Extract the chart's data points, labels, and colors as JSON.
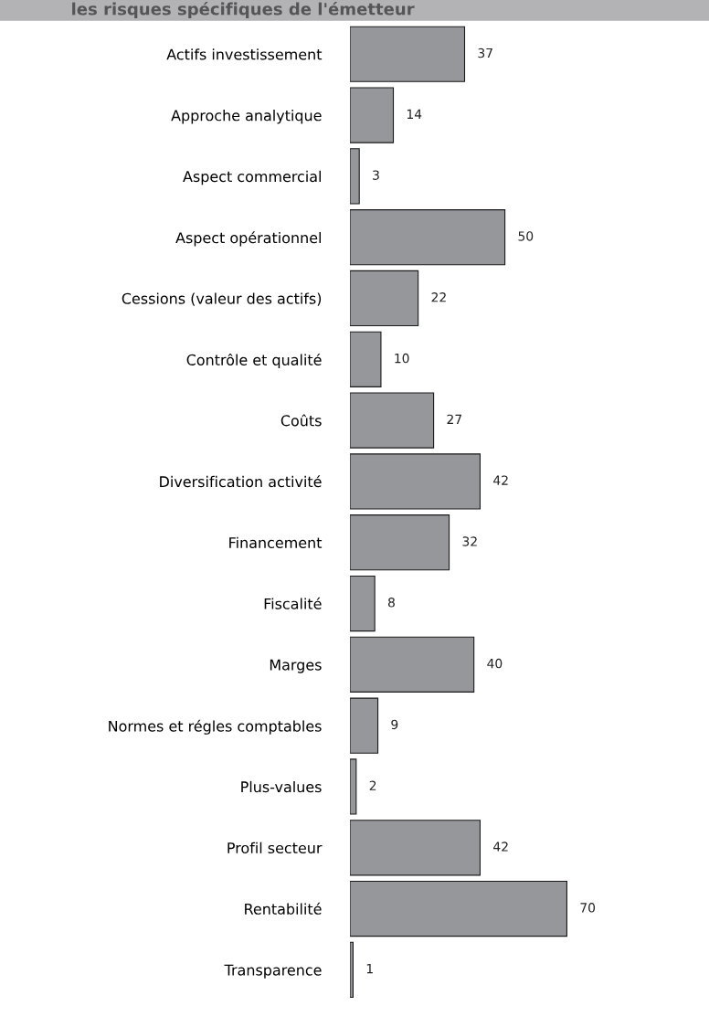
{
  "chart_data": {
    "type": "bar",
    "orientation": "horizontal",
    "title": "les risques spécifiques de l'émetteur",
    "categories": [
      "Actifs investissement",
      "Approche analytique",
      "Aspect commercial",
      "Aspect opérationnel",
      "Cessions (valeur des actifs)",
      "Contrôle et qualité",
      "Coûts",
      "Diversification activité",
      "Financement",
      "Fiscalité",
      "Marges",
      "Normes et régles comptables",
      "Plus-values",
      "Profil secteur",
      "Rentabilité",
      "Transparence"
    ],
    "values": [
      37,
      14,
      3,
      50,
      22,
      10,
      27,
      42,
      32,
      8,
      40,
      9,
      2,
      42,
      70,
      1
    ],
    "color": "#96979b",
    "data_labels": true,
    "grid": false
  }
}
